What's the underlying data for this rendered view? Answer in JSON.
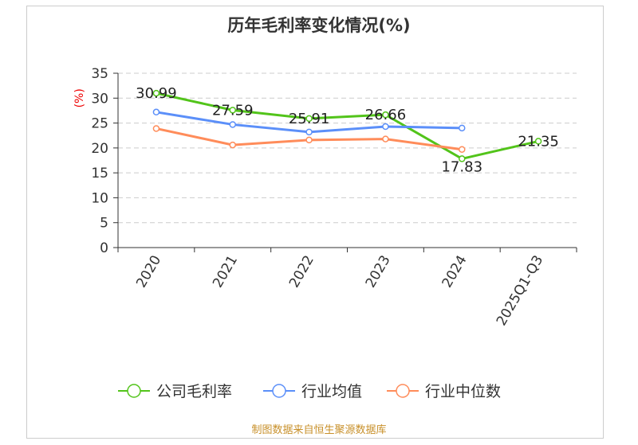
{
  "chart_data": {
    "type": "line",
    "title": "历年毛利率变化情况(%)",
    "ylabel": "(%)",
    "ylim": [
      0,
      35
    ],
    "yticks": [
      0,
      5,
      10,
      15,
      20,
      25,
      30,
      35
    ],
    "categories": [
      "2020",
      "2021",
      "2022",
      "2023",
      "2024",
      "2025Q1-Q3"
    ],
    "series": [
      {
        "name": "公司毛利率",
        "color": "#52c41a",
        "values": [
          30.99,
          27.59,
          25.91,
          26.66,
          17.83,
          21.35
        ],
        "labels": [
          "30.99",
          "27.59",
          "25.91",
          "26.66",
          "17.83",
          "21.35"
        ]
      },
      {
        "name": "行业均值",
        "color": "#5b8ff9",
        "values": [
          27.2,
          24.7,
          23.2,
          24.3,
          24.0,
          null
        ]
      },
      {
        "name": "行业中位数",
        "color": "#ff8c5a",
        "values": [
          23.9,
          20.6,
          21.6,
          21.8,
          19.7,
          null
        ]
      }
    ],
    "grid": true,
    "legend": "bottom"
  },
  "source": "制图数据来自恒生聚源数据库"
}
